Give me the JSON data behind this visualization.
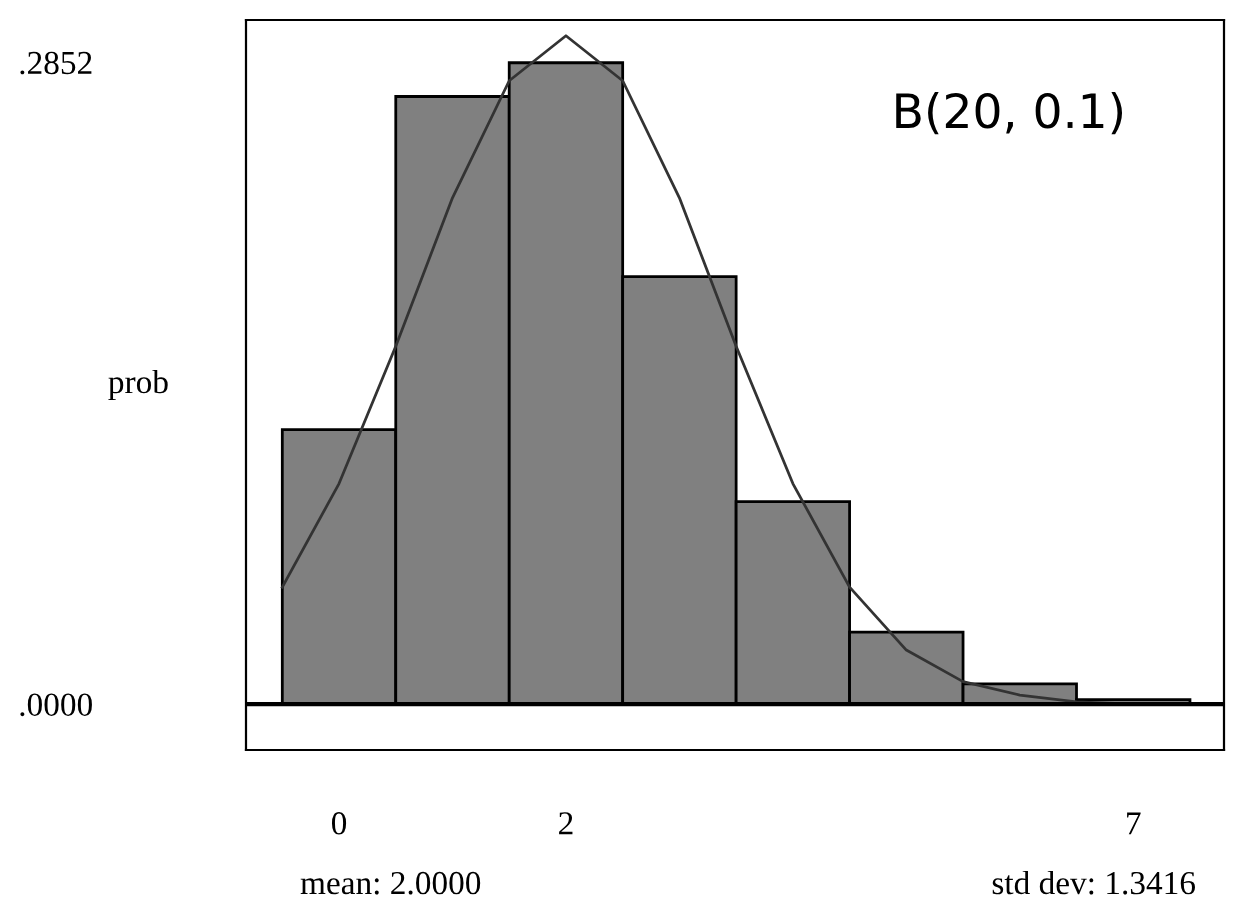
{
  "chart_data": {
    "type": "bar",
    "ylabel": "prob",
    "x": [
      0,
      1,
      2,
      3,
      4,
      5,
      6,
      7
    ],
    "series": [
      {
        "color": "#808080",
        "values": [
          0.122,
          0.27,
          0.285,
          0.19,
          0.09,
          0.032,
          0.009,
          0.002
        ]
      },
      {
        "type": "line",
        "color": "#333333",
        "x": [
          -0.5,
          0,
          0.5,
          1,
          1.5,
          2,
          2.5,
          3,
          3.5,
          4,
          4.5,
          5,
          5.5,
          6,
          6.5,
          7,
          7.5
        ],
        "values": [
          0.052,
          0.098,
          0.159,
          0.225,
          0.277,
          0.297,
          0.277,
          0.225,
          0.159,
          0.098,
          0.052,
          0.024,
          0.01,
          0.004,
          0.001,
          0.0,
          0.0
        ]
      }
    ],
    "xlim": [
      -0.82,
      7.8
    ],
    "xticks": [
      0,
      2,
      7
    ],
    "ylim": [
      -0.0204,
      0.304
    ],
    "yticks": [
      {
        "value": 0.2852,
        "label": ".2852"
      },
      {
        "value": 0,
        "label": ".0000"
      }
    ],
    "ref_lines": [
      {
        "axis": "y",
        "value": 0,
        "color": "#000000"
      }
    ],
    "legend": false,
    "marker": "none",
    "line_style": "solid",
    "annotations": [
      "B(20, 0.1)",
      "mean: 2.0000",
      "std dev: 1.3416"
    ]
  }
}
